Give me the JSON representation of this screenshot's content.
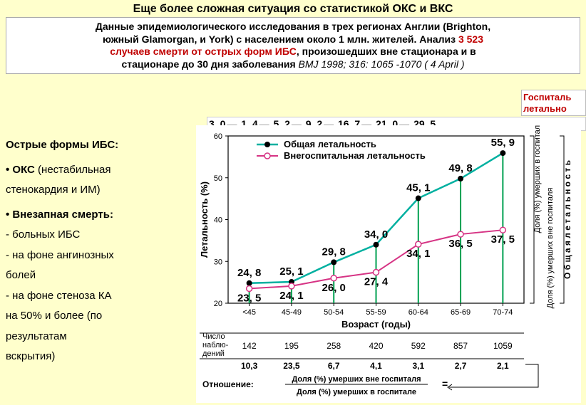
{
  "title": "Еще более сложная ситуация со статистикой ОКС и ВКС",
  "intro": {
    "l1_a": "Данные эпидемиологического исследования в трех регионах Англии (Brighton,",
    "l2_a": "южный Glamorgan, и York) с населением около 1 млн. жителей. Анализ ",
    "l2_red": "3 523",
    "l3_a": "случаев смерти от острых форм ИБС",
    "l3_b": ", произошедших вне стационара и в",
    "l4_a": "стационаре до 30 дня заболевания",
    "l4_cite": " BMJ 1998; 316: 1065 -1070 ( 4 April )"
  },
  "side_right": {
    "l1": "Госпиталь",
    "l2": "летально"
  },
  "age_value_row": [
    "3, 0",
    "1, 4",
    "5, 2",
    "9, 2",
    "16, 7",
    "21, 0",
    "29, 5"
  ],
  "left": {
    "h1": "Острые формы ИБС:",
    "i1": "• ОКС",
    "i1_sub": "  (нестабильная",
    "i1_sub2": "  стенокардия и ИМ)",
    "i2": "• Внезапная смерть:",
    "s1": "  - больных ИБС",
    "s2": "  - на фоне ангинозных",
    "s2b": "    болей",
    "s3": "  - на фоне стеноза КА",
    "s3b": "    на 50% и более (по",
    "s3c": "    результатам",
    "s3d": "    вскрытия)"
  },
  "chart": {
    "y_axis_left": "Летальность (%)",
    "y_axis_right1": "Доля (%) умерших в госпитале",
    "y_axis_right2": "Доля (%) умерших вне госпиталя",
    "y_axis_right3": "О б щ а я   л е т а л ь н о с т ь",
    "x_axis": "Возраст (годы)",
    "legend1": "Общая летальность",
    "legend2": "Внегоспитальная летальность",
    "categories": [
      "<45",
      "45-49",
      "50-54",
      "55-59",
      "60-64",
      "65-69",
      "70-74"
    ],
    "series_total": [
      24.8,
      25.1,
      29.8,
      34.0,
      45.1,
      49.8,
      55.9
    ],
    "series_outhosp": [
      23.5,
      24.1,
      26.0,
      27.4,
      34.1,
      36.5,
      37.5
    ],
    "labels_total": [
      "24, 8",
      "25, 1",
      "29, 8",
      "34, 0",
      "45, 1",
      "49, 8",
      "55, 9"
    ],
    "labels_outhosp": [
      "23, 5",
      "24, 1",
      "26, 0",
      "27, 4",
      "34, 1",
      "36, 5",
      "37, 5"
    ],
    "ylim": [
      20,
      60
    ],
    "ytick_step": 10,
    "colors": {
      "total_line": "#00b0a0",
      "total_marker": "#000000",
      "outhosp_line": "#d63384",
      "outhosp_marker_fill": "#ffffff",
      "outhosp_marker_stroke": "#d63384",
      "vertical_bar": "#00a050",
      "grid": "#e0e0e0",
      "axis": "#000000"
    },
    "n_obs_label": "Число наблюдений",
    "n_obs": [
      "142",
      "195",
      "258",
      "420",
      "592",
      "857",
      "1059"
    ],
    "ratio_row": [
      "10,3",
      "23,5",
      "6,7",
      "4,1",
      "3,1",
      "2,7",
      "2,1"
    ],
    "ratio_label": "Отношение:",
    "ratio_expr1": "Доля (%) умерших вне госпиталя",
    "ratio_expr2": "Доля (%) умерших в госпитале",
    "eq": "="
  }
}
